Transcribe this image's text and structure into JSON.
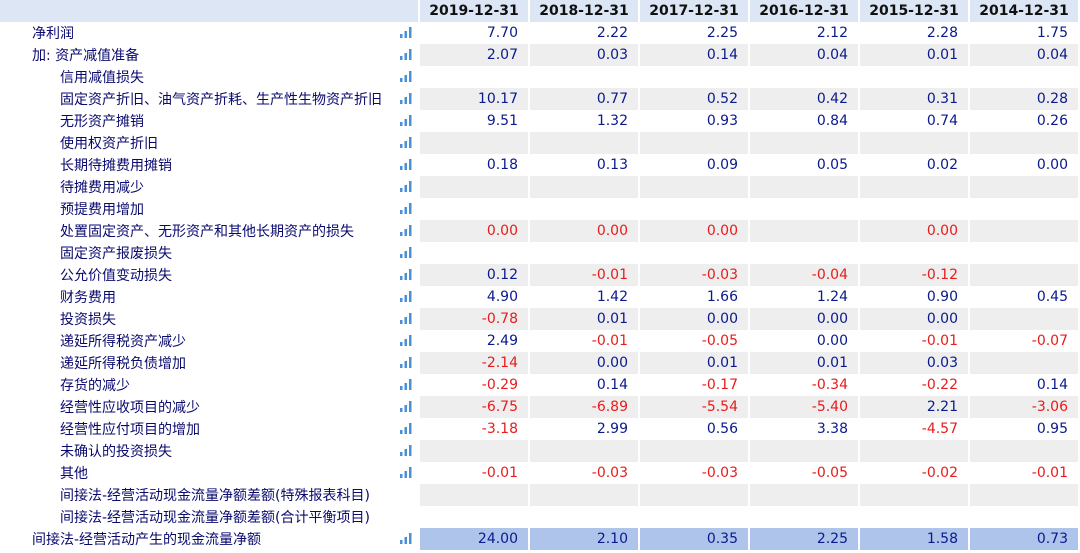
{
  "years": [
    "2019-12-31",
    "2018-12-31",
    "2017-12-31",
    "2016-12-31",
    "2015-12-31",
    "2014-12-31"
  ],
  "rows": [
    {
      "label": "净利润",
      "indent": false,
      "shade": "white",
      "values": [
        "7.70",
        "2.22",
        "2.25",
        "2.12",
        "2.28",
        "1.75"
      ]
    },
    {
      "label": "加: 资产减值准备",
      "indent": false,
      "shade": "grey",
      "values": [
        "2.07",
        "0.03",
        "0.14",
        "0.04",
        "0.01",
        "0.04"
      ]
    },
    {
      "label": "信用减值损失",
      "indent": true,
      "shade": "white",
      "values": [
        "",
        "",
        "",
        "",
        "",
        ""
      ]
    },
    {
      "label": "固定资产折旧、油气资产折耗、生产性生物资产折旧",
      "indent": true,
      "shade": "grey",
      "values": [
        "10.17",
        "0.77",
        "0.52",
        "0.42",
        "0.31",
        "0.28"
      ]
    },
    {
      "label": "无形资产摊销",
      "indent": true,
      "shade": "white",
      "values": [
        "9.51",
        "1.32",
        "0.93",
        "0.84",
        "0.74",
        "0.26"
      ]
    },
    {
      "label": "使用权资产折旧",
      "indent": true,
      "shade": "grey",
      "values": [
        "",
        "",
        "",
        "",
        "",
        ""
      ]
    },
    {
      "label": "长期待摊费用摊销",
      "indent": true,
      "shade": "white",
      "values": [
        "0.18",
        "0.13",
        "0.09",
        "0.05",
        "0.02",
        "0.00"
      ]
    },
    {
      "label": "待摊费用减少",
      "indent": true,
      "shade": "grey",
      "values": [
        "",
        "",
        "",
        "",
        "",
        ""
      ]
    },
    {
      "label": "预提费用增加",
      "indent": true,
      "shade": "white",
      "values": [
        "",
        "",
        "",
        "",
        "",
        ""
      ]
    },
    {
      "label": "处置固定资产、无形资产和其他长期资产的损失",
      "indent": true,
      "shade": "grey",
      "values": [
        "0.00",
        "0.00",
        "0.00",
        "",
        "0.00",
        ""
      ],
      "red": true
    },
    {
      "label": "固定资产报废损失",
      "indent": true,
      "shade": "white",
      "values": [
        "",
        "",
        "",
        "",
        "",
        ""
      ]
    },
    {
      "label": "公允价值变动损失",
      "indent": true,
      "shade": "grey",
      "values": [
        "0.12",
        "-0.01",
        "-0.03",
        "-0.04",
        "-0.12",
        ""
      ]
    },
    {
      "label": "财务费用",
      "indent": true,
      "shade": "white",
      "values": [
        "4.90",
        "1.42",
        "1.66",
        "1.24",
        "0.90",
        "0.45"
      ]
    },
    {
      "label": "投资损失",
      "indent": true,
      "shade": "grey",
      "values": [
        "-0.78",
        "0.01",
        "0.00",
        "0.00",
        "0.00",
        ""
      ],
      "redzero": true
    },
    {
      "label": "递延所得税资产减少",
      "indent": true,
      "shade": "white",
      "values": [
        "2.49",
        "-0.01",
        "-0.05",
        "0.00",
        "-0.01",
        "-0.07"
      ]
    },
    {
      "label": "递延所得税负债增加",
      "indent": true,
      "shade": "grey",
      "values": [
        "-2.14",
        "0.00",
        "0.01",
        "0.01",
        "0.03",
        ""
      ]
    },
    {
      "label": "存货的减少",
      "indent": true,
      "shade": "white",
      "values": [
        "-0.29",
        "0.14",
        "-0.17",
        "-0.34",
        "-0.22",
        "0.14"
      ]
    },
    {
      "label": "经营性应收项目的减少",
      "indent": true,
      "shade": "grey",
      "values": [
        "-6.75",
        "-6.89",
        "-5.54",
        "-5.40",
        "2.21",
        "-3.06"
      ]
    },
    {
      "label": "经营性应付项目的增加",
      "indent": true,
      "shade": "white",
      "values": [
        "-3.18",
        "2.99",
        "0.56",
        "3.38",
        "-4.57",
        "0.95"
      ]
    },
    {
      "label": "未确认的投资损失",
      "indent": true,
      "shade": "grey",
      "values": [
        "",
        "",
        "",
        "",
        "",
        ""
      ]
    },
    {
      "label": "其他",
      "indent": true,
      "shade": "white",
      "values": [
        "-0.01",
        "-0.03",
        "-0.03",
        "-0.05",
        "-0.02",
        "-0.01"
      ]
    },
    {
      "label": "间接法-经营活动现金流量净额差额(特殊报表科目)",
      "indent": true,
      "shade": "grey",
      "noicon": true,
      "values": [
        "",
        "",
        "",
        "",
        "",
        ""
      ]
    },
    {
      "label": "间接法-经营活动现金流量净额差额(合计平衡项目)",
      "indent": true,
      "shade": "white",
      "noicon": true,
      "values": [
        "",
        "",
        "",
        "",
        "",
        ""
      ]
    },
    {
      "label": "间接法-经营活动产生的现金流量净额",
      "indent": false,
      "shade": "total",
      "values": [
        "24.00",
        "2.10",
        "0.35",
        "2.25",
        "1.58",
        "0.73"
      ]
    }
  ],
  "colors": {
    "header_bg": "#dce6f4",
    "grey_row": "#eeeeee",
    "total_row": "#aec4ea",
    "positive": "#0a1a8c",
    "negative": "#e81c1c",
    "icon": "#4a90d9"
  }
}
